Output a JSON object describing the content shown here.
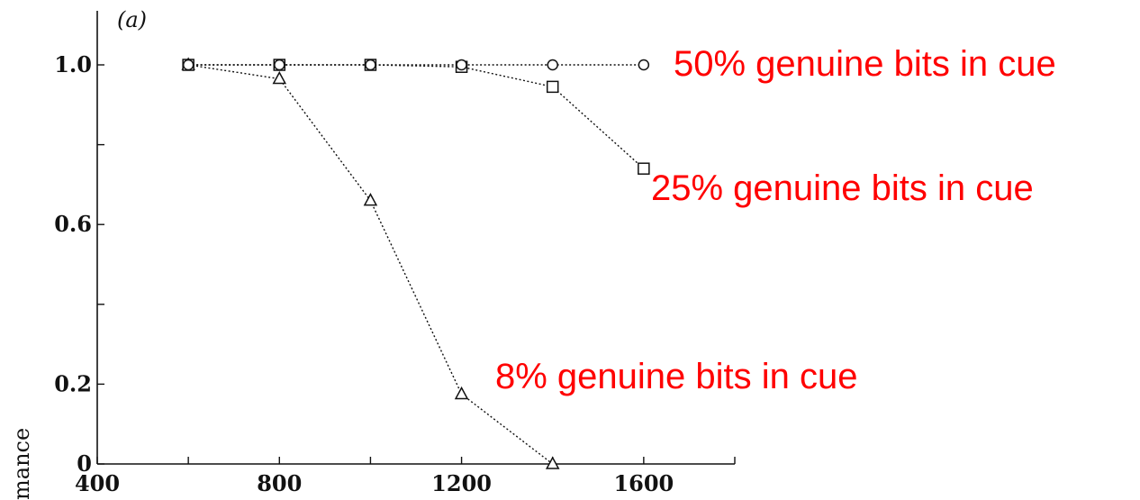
{
  "chart_data": {
    "type": "line",
    "panel_label": "(a)",
    "ylabel": "mance",
    "xlim": [
      400,
      1800
    ],
    "ylim": [
      0,
      1.1
    ],
    "x_ticks": [
      400,
      800,
      1200,
      1600
    ],
    "x_minor_ticks": [
      600,
      1000,
      1400,
      1800
    ],
    "y_ticks": [
      0,
      0.2,
      0.6,
      1.0
    ],
    "y_tick_labels": [
      "0",
      "0.2",
      "0.6",
      "1.0"
    ],
    "y_minor_ticks": [
      0.4,
      0.8
    ],
    "grid": false,
    "annotation_color": "#ff0000",
    "series": [
      {
        "marker": "circle",
        "annotation": "50% genuine bits in cue",
        "x": [
          600,
          800,
          1000,
          1200,
          1400,
          1600
        ],
        "values": [
          1.0,
          1.0,
          1.0,
          1.0,
          1.0,
          1.0
        ]
      },
      {
        "marker": "square",
        "annotation": "25% genuine bits in cue",
        "x": [
          600,
          800,
          1000,
          1200,
          1400,
          1600
        ],
        "values": [
          1.0,
          1.0,
          1.0,
          0.995,
          0.945,
          0.74
        ]
      },
      {
        "marker": "triangle",
        "annotation": "8% genuine bits in cue",
        "x": [
          600,
          800,
          1000,
          1200,
          1400
        ],
        "values": [
          1.0,
          0.965,
          0.66,
          0.175,
          0.0
        ]
      }
    ]
  }
}
